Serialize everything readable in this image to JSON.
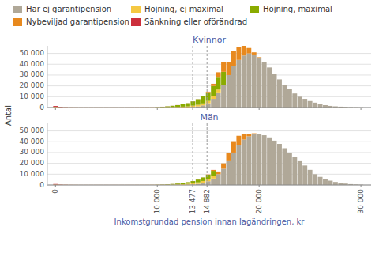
{
  "chart_data": [
    {
      "type": "bar",
      "stacked": true,
      "title": "Kvinnor",
      "y_label": "Antal",
      "legend": "top",
      "grid": true,
      "tick_labels": "y",
      "x": [
        0,
        500,
        1000,
        1500,
        2000,
        2500,
        3000,
        3500,
        4000,
        4500,
        5000,
        5500,
        6000,
        6500,
        7000,
        7500,
        8000,
        8500,
        9000,
        9500,
        10000,
        10500,
        11000,
        11500,
        12000,
        12500,
        13000,
        13500,
        14000,
        14500,
        15000,
        15500,
        16000,
        16500,
        17000,
        17500,
        18000,
        18500,
        19000,
        19500,
        20000,
        20500,
        21000,
        21500,
        22000,
        22500,
        23000,
        23500,
        24000,
        24500,
        25000,
        25500,
        26000,
        26500,
        27000,
        27500,
        28000,
        28500,
        29000,
        29500,
        30000
      ],
      "xlim": [
        -800,
        31000
      ],
      "xticks": [
        0,
        10000,
        13477,
        14882,
        20000,
        30000
      ],
      "ylim": [
        0,
        57000
      ],
      "yticks": [
        0,
        {
          "value": 10000,
          "label": "10 000"
        },
        {
          "value": 20000,
          "label": "20 000"
        },
        {
          "value": 30000,
          "label": "30 000"
        },
        {
          "value": 40000,
          "label": "40 000"
        },
        {
          "value": 50000,
          "label": "50 000"
        }
      ],
      "reference_lines": [
        13477,
        14882
      ],
      "series": [
        {
          "name": "Har ej garantipension",
          "color": "#b0a898",
          "values": [
            0,
            0,
            0,
            0,
            0,
            0,
            0,
            0,
            0,
            0,
            0,
            0,
            0,
            0,
            0,
            0,
            0,
            0,
            0,
            0,
            0,
            0,
            0,
            0,
            0,
            0,
            0,
            500,
            1000,
            2000,
            4000,
            8000,
            14000,
            21000,
            30000,
            38000,
            44000,
            48000,
            50000,
            49000,
            46000,
            42000,
            37000,
            31000,
            26000,
            21000,
            17000,
            13000,
            10000,
            8000,
            6000,
            4500,
            3200,
            2200,
            1500,
            1100,
            800,
            600,
            400,
            300,
            200
          ]
        },
        {
          "name": "Höjning, ej maximal",
          "color": "#f5c842",
          "values": [
            600,
            300,
            200,
            150,
            120,
            100,
            100,
            100,
            100,
            100,
            100,
            100,
            100,
            100,
            100,
            100,
            120,
            150,
            180,
            200,
            250,
            300,
            400,
            500,
            600,
            800,
            1000,
            1200,
            1500,
            1800,
            2100,
            2400,
            2600,
            0,
            0,
            0,
            0,
            0,
            0,
            0,
            0,
            0,
            0,
            0,
            0,
            0,
            0,
            0,
            0,
            0,
            0,
            0,
            0,
            0,
            0,
            0,
            0,
            0,
            0,
            0,
            0
          ]
        },
        {
          "name": "Höjning, maximal",
          "color": "#8aab00",
          "values": [
            0,
            0,
            0,
            0,
            0,
            0,
            0,
            0,
            0,
            0,
            0,
            0,
            0,
            0,
            0,
            0,
            0,
            0,
            0,
            0,
            200,
            400,
            700,
            1100,
            1600,
            2200,
            3000,
            4000,
            5200,
            6500,
            8000,
            9500,
            11000,
            12000,
            0,
            0,
            0,
            0,
            0,
            0,
            0,
            0,
            0,
            0,
            0,
            0,
            0,
            0,
            0,
            0,
            0,
            0,
            0,
            0,
            0,
            0,
            0,
            0,
            0,
            0,
            0
          ]
        },
        {
          "name": "Nybeviljad garantipension",
          "color": "#e8891e",
          "values": [
            0,
            0,
            0,
            0,
            0,
            0,
            0,
            0,
            0,
            0,
            0,
            0,
            0,
            0,
            0,
            0,
            0,
            0,
            0,
            0,
            0,
            0,
            0,
            0,
            0,
            0,
            0,
            0,
            0,
            0,
            500,
            2000,
            5000,
            9000,
            12000,
            14000,
            12000,
            9000,
            5000,
            2000,
            500,
            0,
            0,
            0,
            0,
            0,
            0,
            0,
            0,
            0,
            0,
            0,
            0,
            0,
            0,
            0,
            0,
            0,
            0,
            0,
            0
          ]
        },
        {
          "name": "Sänkning eller oförändrad",
          "color": "#cc2f3c",
          "values": [
            800,
            400,
            200,
            100,
            80,
            60,
            60,
            60,
            60,
            60,
            60,
            60,
            60,
            60,
            60,
            60,
            60,
            60,
            60,
            60,
            60,
            60,
            60,
            60,
            60,
            60,
            60,
            60,
            60,
            60,
            60,
            60,
            0,
            0,
            0,
            0,
            0,
            0,
            0,
            0,
            0,
            0,
            0,
            0,
            0,
            0,
            0,
            0,
            0,
            0,
            0,
            0,
            0,
            0,
            0,
            0,
            0,
            0,
            0,
            0,
            0
          ]
        }
      ]
    },
    {
      "type": "bar",
      "stacked": true,
      "title": "Män",
      "x_label": "Inkomstgrundad pension innan lagändringen, kr",
      "grid": true,
      "x": [
        0,
        500,
        1000,
        1500,
        2000,
        2500,
        3000,
        3500,
        4000,
        4500,
        5000,
        5500,
        6000,
        6500,
        7000,
        7500,
        8000,
        8500,
        9000,
        9500,
        10000,
        10500,
        11000,
        11500,
        12000,
        12500,
        13000,
        13500,
        14000,
        14500,
        15000,
        15500,
        16000,
        16500,
        17000,
        17500,
        18000,
        18500,
        19000,
        19500,
        20000,
        20500,
        21000,
        21500,
        22000,
        22500,
        23000,
        23500,
        24000,
        24500,
        25000,
        25500,
        26000,
        26500,
        27000,
        27500,
        28000,
        28500,
        29000,
        29500,
        30000
      ],
      "xlim": [
        -800,
        31000
      ],
      "xticks": [
        0,
        {
          "value": 10000,
          "label": "10 000"
        },
        {
          "value": 13477,
          "label": "13 477"
        },
        {
          "value": 14882,
          "label": "14 882"
        },
        {
          "value": 20000,
          "label": "20 000"
        },
        {
          "value": 30000,
          "label": "30 000"
        }
      ],
      "ylim": [
        0,
        57000
      ],
      "yticks": [
        0,
        {
          "value": 10000,
          "label": "10 000"
        },
        {
          "value": 20000,
          "label": "20 000"
        },
        {
          "value": 30000,
          "label": "30 000"
        },
        {
          "value": 40000,
          "label": "40 000"
        },
        {
          "value": 50000,
          "label": "50 000"
        }
      ],
      "reference_lines": [
        13477,
        14882
      ],
      "series": [
        {
          "color": "#b0a898",
          "values": [
            0,
            0,
            0,
            0,
            0,
            0,
            0,
            0,
            0,
            0,
            0,
            0,
            0,
            0,
            0,
            0,
            0,
            0,
            0,
            0,
            0,
            0,
            0,
            0,
            0,
            0,
            200,
            500,
            1000,
            2000,
            3500,
            6000,
            10000,
            15000,
            22000,
            30000,
            37000,
            42000,
            45000,
            47000,
            47000,
            46000,
            44000,
            41000,
            38000,
            34000,
            30000,
            26000,
            22000,
            18000,
            14000,
            10000,
            7500,
            5500,
            4000,
            2800,
            1900,
            1300,
            800,
            500,
            300
          ]
        },
        {
          "color": "#f5c842",
          "values": [
            400,
            200,
            150,
            120,
            100,
            80,
            80,
            80,
            80,
            80,
            80,
            80,
            80,
            80,
            80,
            80,
            100,
            120,
            150,
            180,
            200,
            250,
            300,
            400,
            500,
            700,
            900,
            1100,
            1400,
            1700,
            2000,
            2300,
            0,
            0,
            0,
            0,
            0,
            0,
            0,
            0,
            0,
            0,
            0,
            0,
            0,
            0,
            0,
            0,
            0,
            0,
            0,
            0,
            0,
            0,
            0,
            0,
            0,
            0,
            0,
            0,
            0
          ]
        },
        {
          "color": "#8aab00",
          "values": [
            0,
            0,
            0,
            0,
            0,
            0,
            0,
            0,
            0,
            0,
            0,
            0,
            0,
            0,
            0,
            0,
            0,
            0,
            0,
            0,
            100,
            200,
            350,
            550,
            800,
            1100,
            1500,
            2000,
            2600,
            3300,
            4000,
            4800,
            0,
            0,
            0,
            0,
            0,
            0,
            0,
            0,
            0,
            0,
            0,
            0,
            0,
            0,
            0,
            0,
            0,
            0,
            0,
            0,
            0,
            0,
            0,
            0,
            0,
            0,
            0,
            0,
            0
          ]
        },
        {
          "color": "#e8891e",
          "values": [
            0,
            0,
            0,
            0,
            0,
            0,
            0,
            0,
            0,
            0,
            0,
            0,
            0,
            0,
            0,
            0,
            0,
            0,
            0,
            0,
            0,
            0,
            0,
            0,
            0,
            0,
            0,
            0,
            0,
            0,
            200,
            800,
            2500,
            5000,
            8000,
            10500,
            8500,
            5500,
            2500,
            800,
            200,
            0,
            0,
            0,
            0,
            0,
            0,
            0,
            0,
            0,
            0,
            0,
            0,
            0,
            0,
            0,
            0,
            0,
            0,
            0,
            0
          ]
        },
        {
          "color": "#cc2f3c",
          "values": [
            500,
            250,
            150,
            80,
            60,
            50,
            50,
            50,
            50,
            50,
            50,
            50,
            50,
            50,
            50,
            50,
            50,
            50,
            50,
            50,
            50,
            50,
            50,
            50,
            50,
            50,
            50,
            50,
            50,
            50,
            50,
            50,
            0,
            0,
            0,
            0,
            0,
            0,
            0,
            0,
            0,
            0,
            0,
            0,
            0,
            0,
            0,
            0,
            0,
            0,
            0,
            0,
            0,
            0,
            0,
            0,
            0,
            0,
            0,
            0,
            0
          ]
        }
      ]
    }
  ]
}
